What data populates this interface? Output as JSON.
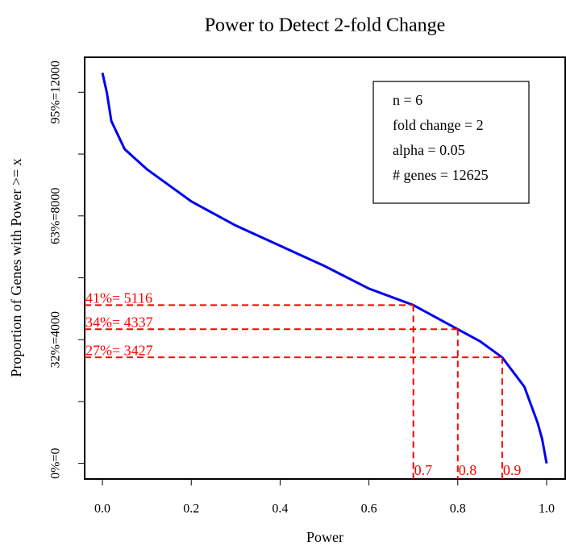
{
  "chart_data": {
    "type": "line",
    "title": "Power to Detect 2-fold Change",
    "x_label": "Power",
    "y_label": "Proportion of Genes with Power >= x",
    "x": [
      0.0,
      0.01,
      0.02,
      0.05,
      0.1,
      0.2,
      0.3,
      0.4,
      0.5,
      0.6,
      0.7,
      0.8,
      0.85,
      0.9,
      0.95,
      0.98,
      0.99,
      1.0
    ],
    "values": [
      12625,
      11985,
      11070,
      10160,
      9510,
      8470,
      7690,
      7035,
      6380,
      5650,
      5116,
      4337,
      3950,
      3427,
      2475,
      1300,
      780,
      0
    ],
    "color": "#0000ee",
    "xlim": [
      -0.04,
      1.04
    ],
    "ylim": [
      -505,
      13130
    ],
    "xticks": [
      {
        "value": 0,
        "label": "0.0"
      },
      0.2,
      0.4,
      0.6,
      0.8,
      {
        "value": 1,
        "label": "1.0"
      }
    ],
    "yticks": [
      {
        "value": 0,
        "label": "0%=0"
      },
      {
        "value": 4000,
        "label": "32%=4000"
      },
      {
        "value": 8000,
        "label": "63%=8000"
      },
      {
        "value": 12000,
        "label": "95%=12000"
      }
    ],
    "yminorticks": [
      2000,
      6000,
      10000
    ],
    "annotation_color": "#ff0000",
    "annotations": [
      {
        "x": 0.7,
        "value": 5116,
        "label": "41%= 5116"
      },
      {
        "x": 0.8,
        "value": 4337,
        "label": "34%= 4337"
      },
      {
        "x": 0.9,
        "value": 3427,
        "label": "27%= 3427"
      }
    ],
    "legend": [
      "n = 6",
      "fold change = 2",
      "alpha = 0.05",
      "# genes = 12625"
    ],
    "legend_position": "top-right"
  }
}
